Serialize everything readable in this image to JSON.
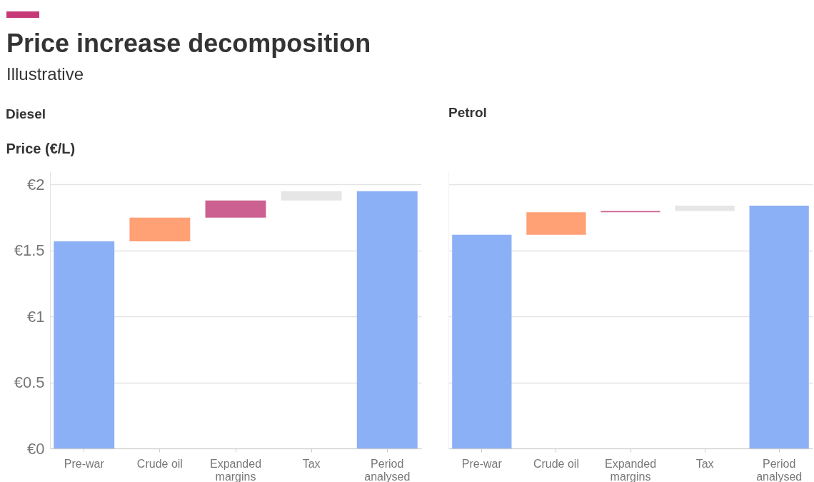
{
  "chart_data": [
    {
      "type": "other",
      "title": "Price increase decomposition",
      "subtitle": "Illustrative"
    },
    {
      "type": "bar",
      "title": "Diesel",
      "ylabel": "Price (€/L)",
      "categories": [
        "Pre-war",
        "Crude oil",
        "Expanded margins",
        "Tax",
        "Period analysed"
      ],
      "values": [
        1.57,
        0.18,
        0.13,
        0.07,
        1.95
      ],
      "base": [
        0,
        1.57,
        1.75,
        1.88,
        0
      ],
      "colors": [
        "#8cb0f5",
        "#ffa075",
        "#cc6090",
        "#e6e6e6",
        "#8cb0f5"
      ],
      "ylim": [
        0,
        2.1
      ],
      "yticks": [
        {
          "value": 0,
          "label": "€0"
        },
        {
          "value": 0.5,
          "label": "€0.5"
        },
        {
          "value": 1,
          "label": "€1"
        },
        {
          "value": 1.5,
          "label": "€1.5"
        },
        {
          "value": 2,
          "label": "€2"
        }
      ],
      "grid": "y"
    },
    {
      "type": "bar",
      "title": "Petrol",
      "categories": [
        "Pre-war",
        "Crude oil",
        "Expanded margins",
        "Tax",
        "Period analysed"
      ],
      "values": [
        1.62,
        0.17,
        0.01,
        0.04,
        1.84
      ],
      "base": [
        0,
        1.62,
        1.79,
        1.8,
        0
      ],
      "colors": [
        "#8cb0f5",
        "#ffa075",
        "#cc6090",
        "#e6e6e6",
        "#8cb0f5"
      ],
      "ylim": [
        0,
        2.1
      ],
      "yticks": [
        0,
        0.5,
        1,
        1.5,
        2
      ],
      "grid": "y",
      "tick_labels": "x"
    }
  ]
}
